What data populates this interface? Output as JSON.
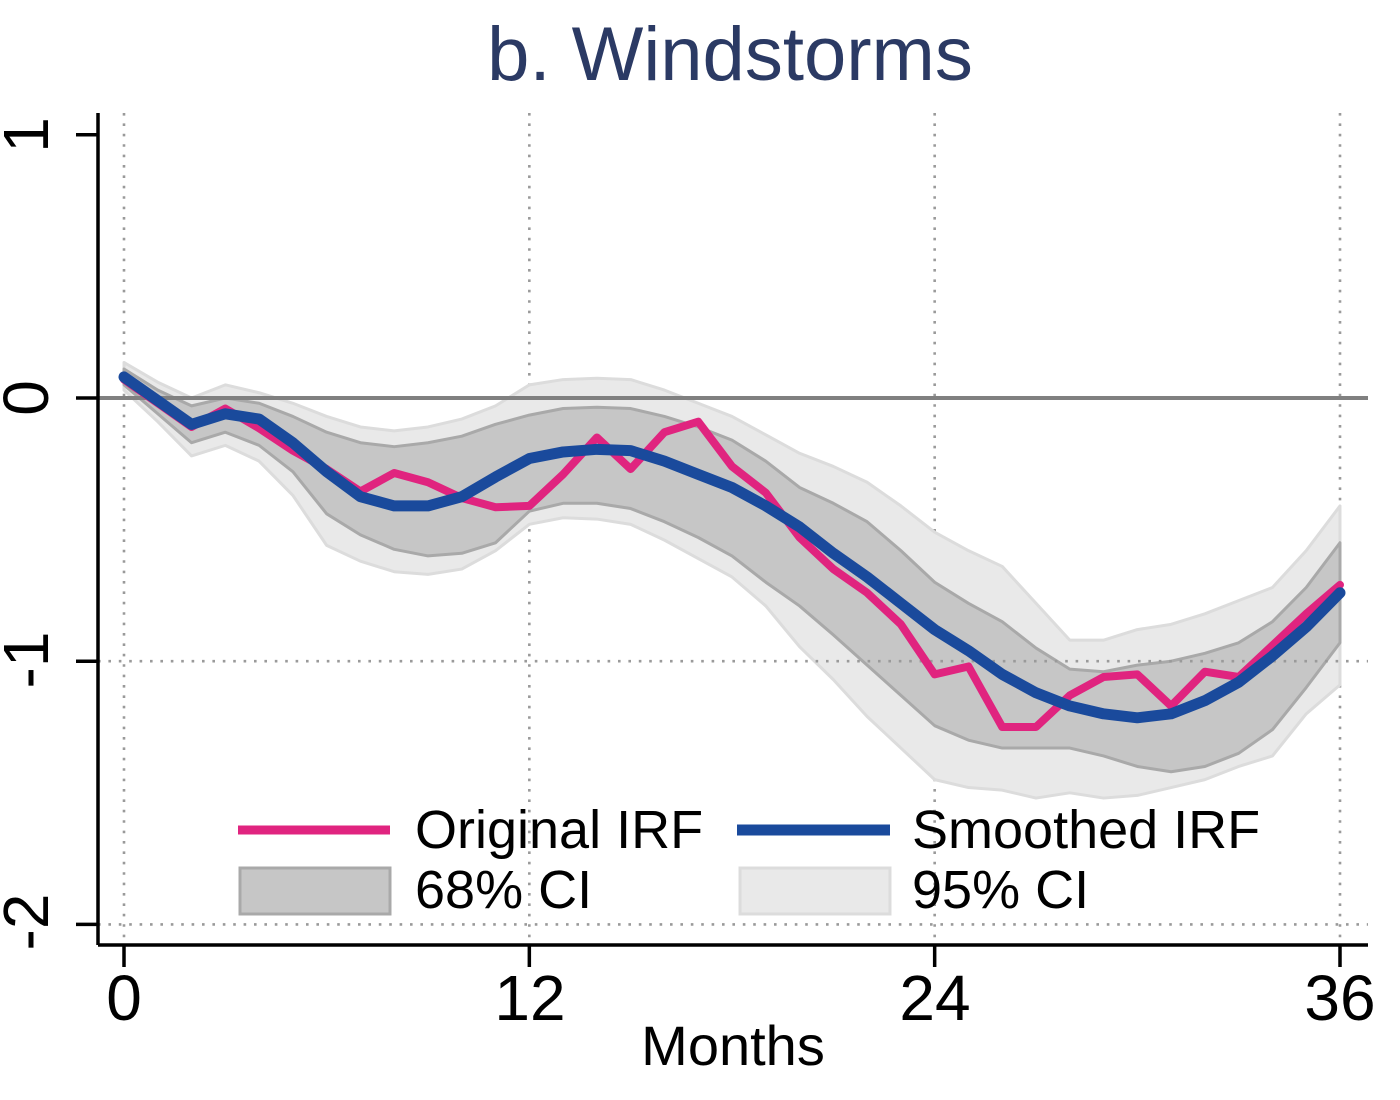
{
  "title": "b. Windstorms",
  "axes": {
    "xlabel": "Months",
    "x_tick_labels": [
      "0",
      "12",
      "24",
      "36"
    ],
    "y_tick_labels": [
      "1",
      "0",
      "-1",
      "-2"
    ]
  },
  "legend": {
    "original_label": "Original IRF",
    "smoothed_label": "Smoothed IRF",
    "ci68_label": "68% CI",
    "ci95_label": "95% CI"
  },
  "colors": {
    "title": "#2b3a64",
    "original_line": "#e0247f",
    "smoothed_line": "#1a4a9c",
    "ci68_fill": "#c6c6c6",
    "ci68_border": "#a9a9a9",
    "ci95_fill": "#e9e9e9",
    "ci95_border": "#dcdcdc",
    "zero_line": "#808080",
    "grid_dots": "#9a9a9a",
    "axis": "#000000"
  },
  "chart_data": {
    "type": "line",
    "title": "b. Windstorms",
    "xlabel": "Months",
    "ylabel": "",
    "xlim": [
      0,
      36
    ],
    "ylim": [
      -2.08,
      1.08
    ],
    "x_ticks": [
      0,
      12,
      24,
      36
    ],
    "y_ticks": [
      1,
      0,
      -1,
      -2
    ],
    "grid": "dotted vertical at x ticks; dotted horizontal at y=-1,-2; solid gray line at y=0",
    "legend_position": "inside bottom, two columns, no frame",
    "x": [
      0,
      1,
      2,
      3,
      4,
      5,
      6,
      7,
      8,
      9,
      10,
      11,
      12,
      13,
      14,
      15,
      16,
      17,
      18,
      19,
      20,
      21,
      22,
      23,
      24,
      25,
      26,
      27,
      28,
      29,
      30,
      31,
      32,
      33,
      34,
      35,
      36
    ],
    "series": [
      {
        "name": "Original IRF",
        "values": [
          0.07,
          -0.02,
          -0.11,
          -0.04,
          -0.115,
          -0.2,
          -0.27,
          -0.355,
          -0.285,
          -0.32,
          -0.38,
          -0.415,
          -0.41,
          -0.29,
          -0.15,
          -0.27,
          -0.13,
          -0.09,
          -0.26,
          -0.36,
          -0.53,
          -0.65,
          -0.74,
          -0.86,
          -1.05,
          -1.02,
          -1.25,
          -1.25,
          -1.13,
          -1.06,
          -1.05,
          -1.17,
          -1.04,
          -1.06,
          -0.94,
          -0.82,
          -0.71
        ]
      },
      {
        "name": "Smoothed IRF",
        "values": [
          0.08,
          -0.01,
          -0.1,
          -0.06,
          -0.08,
          -0.17,
          -0.28,
          -0.375,
          -0.41,
          -0.41,
          -0.375,
          -0.3,
          -0.23,
          -0.205,
          -0.195,
          -0.2,
          -0.24,
          -0.29,
          -0.34,
          -0.41,
          -0.49,
          -0.59,
          -0.68,
          -0.78,
          -0.88,
          -0.96,
          -1.05,
          -1.12,
          -1.17,
          -1.2,
          -1.215,
          -1.2,
          -1.15,
          -1.08,
          -0.98,
          -0.87,
          -0.74
        ]
      }
    ],
    "bands": [
      {
        "name": "95% CI",
        "upper": [
          0.135,
          0.06,
          0.0,
          0.05,
          0.02,
          -0.02,
          -0.07,
          -0.11,
          -0.125,
          -0.11,
          -0.08,
          -0.03,
          0.05,
          0.07,
          0.075,
          0.07,
          0.03,
          -0.02,
          -0.07,
          -0.14,
          -0.21,
          -0.26,
          -0.32,
          -0.41,
          -0.51,
          -0.58,
          -0.64,
          -0.78,
          -0.92,
          -0.92,
          -0.88,
          -0.86,
          -0.82,
          -0.77,
          -0.72,
          -0.58,
          -0.41
        ],
        "lower": [
          0.03,
          -0.09,
          -0.22,
          -0.18,
          -0.24,
          -0.37,
          -0.56,
          -0.62,
          -0.66,
          -0.67,
          -0.65,
          -0.58,
          -0.48,
          -0.455,
          -0.46,
          -0.48,
          -0.54,
          -0.61,
          -0.68,
          -0.79,
          -0.945,
          -1.07,
          -1.21,
          -1.33,
          -1.45,
          -1.48,
          -1.49,
          -1.52,
          -1.5,
          -1.52,
          -1.51,
          -1.48,
          -1.45,
          -1.4,
          -1.36,
          -1.2,
          -1.09
        ]
      },
      {
        "name": "68% CI",
        "upper": [
          0.11,
          0.03,
          -0.03,
          0.0,
          -0.02,
          -0.07,
          -0.13,
          -0.17,
          -0.185,
          -0.17,
          -0.145,
          -0.1,
          -0.065,
          -0.04,
          -0.035,
          -0.04,
          -0.07,
          -0.11,
          -0.16,
          -0.24,
          -0.34,
          -0.4,
          -0.47,
          -0.58,
          -0.7,
          -0.78,
          -0.85,
          -0.95,
          -1.03,
          -1.04,
          -1.015,
          -1.0,
          -0.97,
          -0.93,
          -0.85,
          -0.72,
          -0.55
        ],
        "lower": [
          0.05,
          -0.06,
          -0.17,
          -0.13,
          -0.18,
          -0.28,
          -0.44,
          -0.52,
          -0.575,
          -0.6,
          -0.59,
          -0.55,
          -0.43,
          -0.4,
          -0.4,
          -0.42,
          -0.47,
          -0.53,
          -0.6,
          -0.7,
          -0.79,
          -0.9,
          -1.015,
          -1.13,
          -1.245,
          -1.3,
          -1.33,
          -1.33,
          -1.33,
          -1.36,
          -1.4,
          -1.42,
          -1.4,
          -1.35,
          -1.26,
          -1.1,
          -0.93
        ]
      }
    ]
  }
}
